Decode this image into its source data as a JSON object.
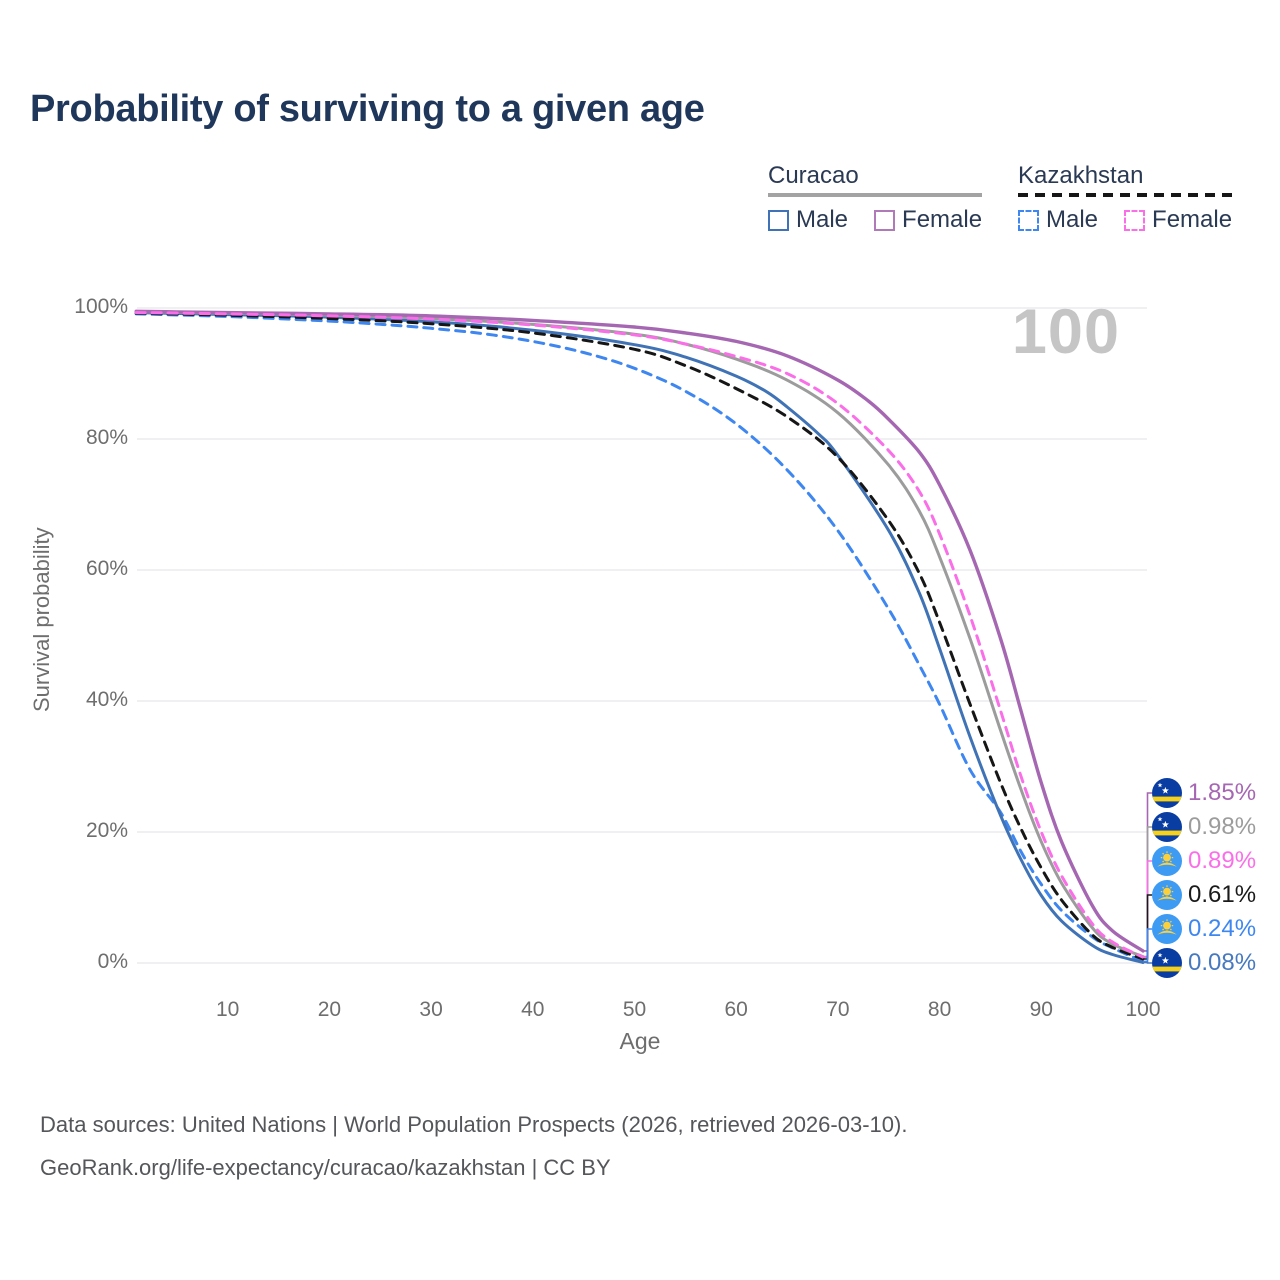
{
  "title": "Probability of surviving to a given age",
  "watermark_age": "100",
  "legend": {
    "groups": [
      {
        "name": "Curacao",
        "line_style": "solid",
        "line_color": "#a3a3a3",
        "items": [
          {
            "label": "Male",
            "color": "#3f73b6",
            "box_style": "solid"
          },
          {
            "label": "Female",
            "color": "#b07ab8",
            "box_style": "solid"
          }
        ]
      },
      {
        "name": "Kazakhstan",
        "line_style": "dashed",
        "line_color": "#161616",
        "items": [
          {
            "label": "Male",
            "color": "#3e87f0",
            "box_style": "dashed"
          },
          {
            "label": "Female",
            "color": "#fa6fe8",
            "box_style": "dashed"
          }
        ]
      }
    ]
  },
  "chart_data": {
    "type": "line",
    "title": "Probability of surviving to a given age",
    "xlabel": "Age",
    "ylabel": "Survival probability",
    "xlim": [
      1,
      100
    ],
    "ylim": [
      0,
      100
    ],
    "x_ticks": [
      10,
      20,
      30,
      40,
      50,
      60,
      70,
      80,
      90,
      100
    ],
    "y_ticks": [
      {
        "value": 0,
        "label": "0%"
      },
      {
        "value": 20,
        "label": "20%"
      },
      {
        "value": 40,
        "label": "40%"
      },
      {
        "value": 60,
        "label": "60%"
      },
      {
        "value": 80,
        "label": "80%"
      },
      {
        "value": 100,
        "label": "100%"
      }
    ],
    "grid": "horizontal",
    "legend_position": "top-right",
    "age_cursor": 100,
    "series": [
      {
        "name": "Kazakhstan Male",
        "country": "Kazakhstan",
        "sex": "male",
        "color": "#3e87f0",
        "line": "dashed",
        "width": 3,
        "end_value": "0.24%",
        "points": [
          [
            1,
            99.1
          ],
          [
            10,
            98.7
          ],
          [
            20,
            98.0
          ],
          [
            27,
            97.3
          ],
          [
            30,
            96.9
          ],
          [
            35,
            96.1
          ],
          [
            40,
            94.9
          ],
          [
            45,
            93.2
          ],
          [
            50,
            90.8
          ],
          [
            55,
            87.3
          ],
          [
            60,
            82.3
          ],
          [
            65,
            75.3
          ],
          [
            70,
            66.0
          ],
          [
            75,
            54.0
          ],
          [
            78,
            45.5
          ],
          [
            80,
            39.5
          ],
          [
            83,
            29.5
          ],
          [
            86,
            23.0
          ],
          [
            88,
            17.0
          ],
          [
            90,
            12.0
          ],
          [
            92,
            8.0
          ],
          [
            95,
            4.0
          ],
          [
            97,
            2.3
          ],
          [
            100,
            0.24
          ]
        ]
      },
      {
        "name": "Curacao Male",
        "country": "Curacao",
        "sex": "male",
        "color": "#3f73b6",
        "line": "solid",
        "width": 3,
        "end_value": "0.08%",
        "points": [
          [
            1,
            99.3
          ],
          [
            10,
            99.0
          ],
          [
            20,
            98.6
          ],
          [
            30,
            97.9
          ],
          [
            40,
            96.6
          ],
          [
            50,
            94.4
          ],
          [
            55,
            92.5
          ],
          [
            60,
            89.6
          ],
          [
            63,
            87.2
          ],
          [
            65,
            84.9
          ],
          [
            68,
            80.9
          ],
          [
            70,
            77.5
          ],
          [
            75,
            66.0
          ],
          [
            78,
            56.5
          ],
          [
            80,
            48.0
          ],
          [
            83,
            34.5
          ],
          [
            86,
            22.5
          ],
          [
            88,
            15.8
          ],
          [
            90,
            10.3
          ],
          [
            92,
            6.4
          ],
          [
            95,
            2.7
          ],
          [
            97,
            1.3
          ],
          [
            100,
            0.08
          ]
        ]
      },
      {
        "name": "Kazakhstan (both sexes)",
        "country": "Kazakhstan",
        "sex": "both",
        "color": "#161616",
        "line": "dashed",
        "width": 3,
        "end_value": "0.61%",
        "points": [
          [
            1,
            99.2
          ],
          [
            10,
            98.9
          ],
          [
            20,
            98.4
          ],
          [
            30,
            97.6
          ],
          [
            40,
            96.2
          ],
          [
            50,
            93.7
          ],
          [
            55,
            91.2
          ],
          [
            60,
            87.7
          ],
          [
            65,
            83.4
          ],
          [
            70,
            77.2
          ],
          [
            75,
            67.5
          ],
          [
            78,
            59.5
          ],
          [
            80,
            52.0
          ],
          [
            83,
            39.5
          ],
          [
            86,
            27.5
          ],
          [
            88,
            20.5
          ],
          [
            90,
            14.5
          ],
          [
            92,
            9.6
          ],
          [
            95,
            4.3
          ],
          [
            97,
            2.4
          ],
          [
            100,
            0.61
          ]
        ]
      },
      {
        "name": "Curacao (both sexes)",
        "country": "Curacao",
        "sex": "both",
        "color": "#9c9c9c",
        "line": "solid",
        "width": 3,
        "end_value": "0.98%",
        "points": [
          [
            1,
            99.4
          ],
          [
            10,
            99.2
          ],
          [
            20,
            98.9
          ],
          [
            30,
            98.4
          ],
          [
            40,
            97.5
          ],
          [
            50,
            96.0
          ],
          [
            55,
            94.5
          ],
          [
            60,
            92.2
          ],
          [
            65,
            89.0
          ],
          [
            70,
            84.0
          ],
          [
            75,
            76.0
          ],
          [
            78,
            69.0
          ],
          [
            80,
            62.0
          ],
          [
            83,
            49.5
          ],
          [
            86,
            35.5
          ],
          [
            88,
            26.5
          ],
          [
            90,
            18.5
          ],
          [
            92,
            12.2
          ],
          [
            95,
            5.4
          ],
          [
            97,
            2.9
          ],
          [
            100,
            0.98
          ]
        ]
      },
      {
        "name": "Curacao Female",
        "country": "Curacao",
        "sex": "female",
        "color": "#a667b2",
        "line": "solid",
        "width": 3.4,
        "end_value": "1.85%",
        "points": [
          [
            1,
            99.5
          ],
          [
            5,
            99.4
          ],
          [
            10,
            99.3
          ],
          [
            20,
            99.1
          ],
          [
            30,
            98.8
          ],
          [
            40,
            98.1
          ],
          [
            50,
            97.1
          ],
          [
            55,
            96.2
          ],
          [
            60,
            94.9
          ],
          [
            65,
            92.7
          ],
          [
            70,
            89.0
          ],
          [
            73,
            85.8
          ],
          [
            75,
            83.0
          ],
          [
            78,
            78.0
          ],
          [
            80,
            73.0
          ],
          [
            83,
            63.0
          ],
          [
            86,
            49.5
          ],
          [
            88,
            38.5
          ],
          [
            90,
            27.5
          ],
          [
            92,
            18.5
          ],
          [
            95,
            8.8
          ],
          [
            97,
            4.9
          ],
          [
            100,
            1.85
          ]
        ]
      },
      {
        "name": "Kazakhstan Female",
        "country": "Kazakhstan",
        "sex": "female",
        "color": "#fa6fe8",
        "line": "dashed",
        "width": 3,
        "end_value": "0.89%",
        "points": [
          [
            1,
            99.3
          ],
          [
            10,
            99.1
          ],
          [
            20,
            98.8
          ],
          [
            30,
            98.3
          ],
          [
            40,
            97.4
          ],
          [
            50,
            95.9
          ],
          [
            55,
            94.5
          ],
          [
            60,
            92.6
          ],
          [
            65,
            90.0
          ],
          [
            70,
            85.4
          ],
          [
            75,
            78.2
          ],
          [
            78,
            72.0
          ],
          [
            80,
            65.5
          ],
          [
            83,
            53.0
          ],
          [
            86,
            38.5
          ],
          [
            88,
            28.5
          ],
          [
            90,
            20.0
          ],
          [
            92,
            13.3
          ],
          [
            95,
            6.0
          ],
          [
            97,
            3.2
          ],
          [
            100,
            0.89
          ]
        ]
      }
    ]
  },
  "end_labels": [
    {
      "value": "1.85%",
      "series": "Curacao Female",
      "flag": "curacao",
      "color": "#a667b2"
    },
    {
      "value": "0.98%",
      "series": "Curacao (both sexes)",
      "flag": "curacao",
      "color": "#9c9c9c"
    },
    {
      "value": "0.89%",
      "series": "Kazakhstan Female",
      "flag": "kazakhstan",
      "color": "#fa6fe8"
    },
    {
      "value": "0.61%",
      "series": "Kazakhstan (both sexes)",
      "flag": "kazakhstan",
      "color": "#1a1a1a"
    },
    {
      "value": "0.24%",
      "series": "Kazakhstan Male",
      "flag": "kazakhstan",
      "color": "#3e87f0"
    },
    {
      "value": "0.08%",
      "series": "Curacao Male",
      "flag": "curacao",
      "color": "#4679c0"
    }
  ],
  "source": {
    "line1": "Data sources: United Nations | World Population Prospects (2026, retrieved 2026-03-10).",
    "line2": "GeoRank.org/life-expectancy/curacao/kazakhstan | CC BY"
  }
}
